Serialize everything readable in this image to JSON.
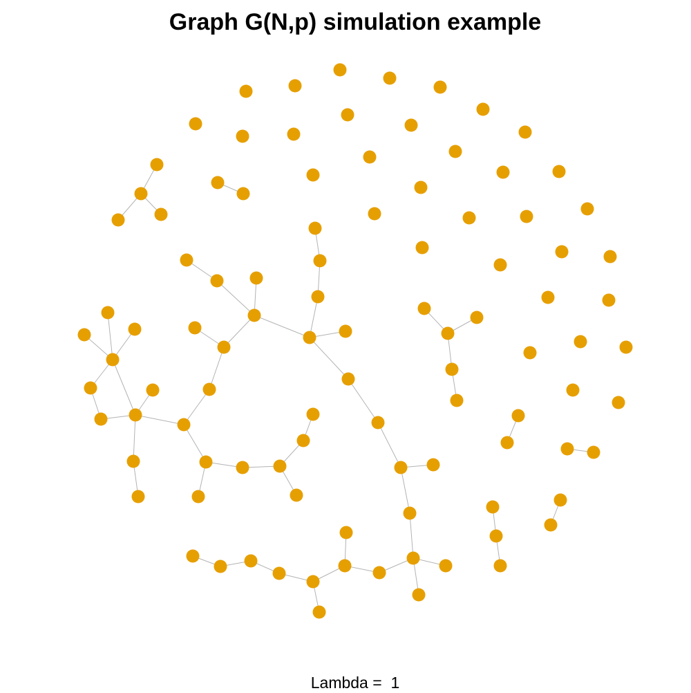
{
  "title": "Graph G(N,p) simulation example",
  "footer": "Lambda =  1",
  "colors": {
    "node": "#E69F00",
    "edge": "#b3b3b3",
    "background": "#ffffff"
  }
}
